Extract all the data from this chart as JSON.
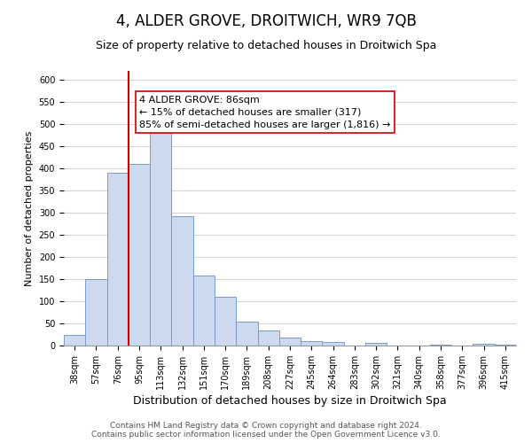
{
  "title": "4, ALDER GROVE, DROITWICH, WR9 7QB",
  "subtitle": "Size of property relative to detached houses in Droitwich Spa",
  "xlabel": "Distribution of detached houses by size in Droitwich Spa",
  "ylabel": "Number of detached properties",
  "bar_labels": [
    "38sqm",
    "57sqm",
    "76sqm",
    "95sqm",
    "113sqm",
    "132sqm",
    "151sqm",
    "170sqm",
    "189sqm",
    "208sqm",
    "227sqm",
    "245sqm",
    "264sqm",
    "283sqm",
    "302sqm",
    "321sqm",
    "340sqm",
    "358sqm",
    "377sqm",
    "396sqm",
    "415sqm"
  ],
  "bar_heights": [
    25,
    150,
    390,
    410,
    500,
    293,
    158,
    110,
    54,
    34,
    18,
    10,
    8,
    0,
    7,
    0,
    0,
    3,
    0,
    4,
    2
  ],
  "bar_color": "#ccd9ee",
  "bar_edge_color": "#7a9cc8",
  "vline_color": "#cc0000",
  "annotation_text": "4 ALDER GROVE: 86sqm\n← 15% of detached houses are smaller (317)\n85% of semi-detached houses are larger (1,816) →",
  "annotation_box_color": "#ffffff",
  "annotation_box_edge": "#cc0000",
  "ylim": [
    0,
    620
  ],
  "yticks": [
    0,
    50,
    100,
    150,
    200,
    250,
    300,
    350,
    400,
    450,
    500,
    550,
    600
  ],
  "grid_color": "#cccccc",
  "background_color": "#ffffff",
  "footer_line1": "Contains HM Land Registry data © Crown copyright and database right 2024.",
  "footer_line2": "Contains public sector information licensed under the Open Government Licence v3.0.",
  "title_fontsize": 12,
  "subtitle_fontsize": 9,
  "xlabel_fontsize": 9,
  "ylabel_fontsize": 8,
  "tick_fontsize": 7,
  "annotation_fontsize": 8,
  "footer_fontsize": 6.5
}
